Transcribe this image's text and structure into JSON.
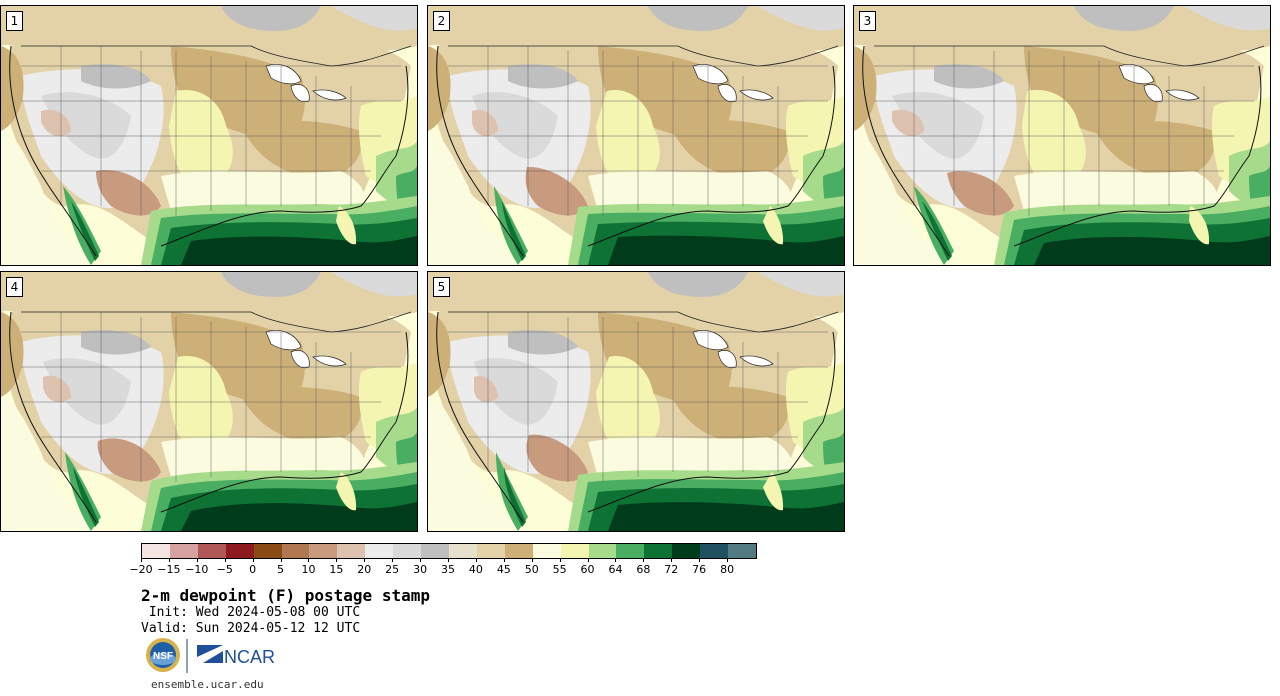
{
  "panels": [
    {
      "label": "1",
      "variant": 0
    },
    {
      "label": "2",
      "variant": 1
    },
    {
      "label": "3",
      "variant": 2
    },
    {
      "label": "4",
      "variant": 3
    },
    {
      "label": "5",
      "variant": 4
    }
  ],
  "colorbar": {
    "colors": [
      "#f3e3e3",
      "#d6a1a1",
      "#b05858",
      "#8c1a1f",
      "#8a4a14",
      "#b07850",
      "#c89a7e",
      "#ddc2b0",
      "#ececec",
      "#dadada",
      "#bfbfbf",
      "#e6e0cc",
      "#e3d2a8",
      "#cdb077",
      "#fbfbdf",
      "#f5f5b2",
      "#a7db8c",
      "#4aae62",
      "#0e7235",
      "#003b1c",
      "#1f5060",
      "#517b80"
    ],
    "tick_labels": [
      "−20",
      "−15",
      "−10",
      "−5",
      "0",
      "5",
      "10",
      "15",
      "20",
      "25",
      "30",
      "35",
      "40",
      "45",
      "50",
      "55",
      "60",
      "64",
      "68",
      "72",
      "76",
      "80"
    ]
  },
  "title": "2-m dewpoint (F) postage stamp",
  "init_line": " Init: Wed 2024-05-08 00 UTC",
  "valid_line": "Valid: Sun 2024-05-12 12 UTC",
  "logos": {
    "nsf": "NSF",
    "ncar": "NCAR"
  },
  "footer": "ensemble.ucar.edu"
}
